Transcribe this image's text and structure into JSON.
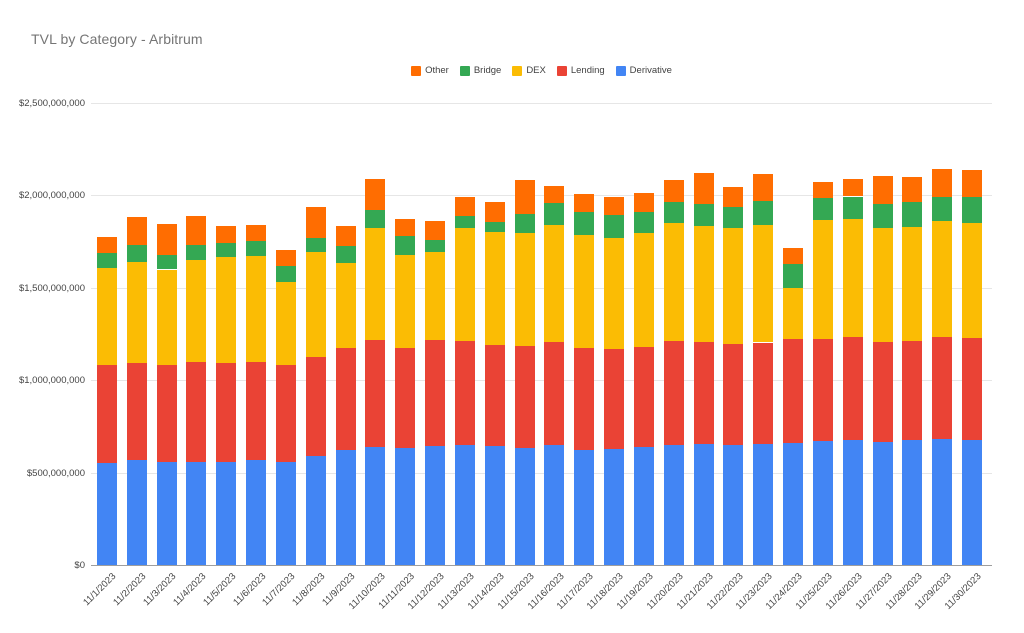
{
  "page": {
    "title": "TVL by Category - Arbitrum"
  },
  "chart_data": {
    "type": "bar",
    "stacked": true,
    "title": "TVL by Category - Arbitrum",
    "categories": [
      "11/1/2023",
      "11/2/2023",
      "11/3/2023",
      "11/4/2023",
      "11/5/2023",
      "11/6/2023",
      "11/7/2023",
      "11/8/2023",
      "11/9/2023",
      "11/10/2023",
      "11/11/2023",
      "11/12/2023",
      "11/13/2023",
      "11/14/2023",
      "11/15/2023",
      "11/16/2023",
      "11/17/2023",
      "11/18/2023",
      "11/19/2023",
      "11/20/2023",
      "11/21/2023",
      "11/22/2023",
      "11/23/2023",
      "11/24/2023",
      "11/25/2023",
      "11/26/2023",
      "11/27/2023",
      "11/28/2023",
      "11/29/2023",
      "11/30/2023"
    ],
    "series": [
      {
        "name": "Derivative",
        "color": "#4285F4",
        "values": [
          553000000,
          566000000,
          556000000,
          560000000,
          560000000,
          566000000,
          556000000,
          589000000,
          624000000,
          638000000,
          632000000,
          642000000,
          647000000,
          643000000,
          632000000,
          647000000,
          624000000,
          629000000,
          638000000,
          651000000,
          656000000,
          647000000,
          656000000,
          662000000,
          670000000,
          674000000,
          665000000,
          674000000,
          680000000,
          678000000
        ]
      },
      {
        "name": "Lending",
        "color": "#EA4335",
        "values": [
          528000000,
          528000000,
          528000000,
          537000000,
          531000000,
          532000000,
          528000000,
          537000000,
          551000000,
          582000000,
          541000000,
          578000000,
          564000000,
          550000000,
          551000000,
          560000000,
          548000000,
          542000000,
          542000000,
          560000000,
          551000000,
          551000000,
          548000000,
          559000000,
          555000000,
          560000000,
          542000000,
          539000000,
          555000000,
          553000000
        ]
      },
      {
        "name": "DEX",
        "color": "#FBBC04",
        "values": [
          528000000,
          545000000,
          515000000,
          553000000,
          577000000,
          575000000,
          448000000,
          566000000,
          458000000,
          601000000,
          503000000,
          476000000,
          615000000,
          611000000,
          614000000,
          633000000,
          615000000,
          600000000,
          615000000,
          638000000,
          627000000,
          627000000,
          636000000,
          277000000,
          642000000,
          637000000,
          618000000,
          618000000,
          627000000,
          622000000
        ]
      },
      {
        "name": "Bridge",
        "color": "#34A853",
        "values": [
          78000000,
          90000000,
          78000000,
          83000000,
          76000000,
          78000000,
          87000000,
          76000000,
          94000000,
          99000000,
          103000000,
          63000000,
          60000000,
          53000000,
          105000000,
          118000000,
          123000000,
          123000000,
          114000000,
          114000000,
          118000000,
          114000000,
          130000000,
          130000000,
          121000000,
          123000000,
          127000000,
          132000000,
          132000000,
          136000000
        ]
      },
      {
        "name": "Other",
        "color": "#FF6D01",
        "values": [
          90000000,
          152000000,
          170000000,
          154000000,
          89000000,
          90000000,
          87000000,
          170000000,
          107000000,
          170000000,
          95000000,
          105000000,
          103000000,
          107000000,
          184000000,
          95000000,
          98000000,
          99000000,
          106000000,
          119000000,
          171000000,
          108000000,
          148000000,
          90000000,
          84000000,
          94000000,
          153000000,
          139000000,
          150000000,
          150000000
        ]
      }
    ],
    "legend": {
      "position": "top",
      "items": [
        {
          "label": "Other",
          "color": "#FF6D01"
        },
        {
          "label": "Bridge",
          "color": "#34A853"
        },
        {
          "label": "DEX",
          "color": "#FBBC04"
        },
        {
          "label": "Lending",
          "color": "#EA4335"
        },
        {
          "label": "Derivative",
          "color": "#4285F4"
        }
      ]
    },
    "y_axis": {
      "min": 0,
      "max": 2500000000,
      "tick_interval": 500000000,
      "tick_labels": [
        "$0",
        "$500,000,000",
        "$1,000,000,000",
        "$1,500,000,000",
        "$2,000,000,000",
        "$2,500,000,000"
      ]
    },
    "x_axis": {
      "label_rotation": -45
    },
    "grid": true
  }
}
